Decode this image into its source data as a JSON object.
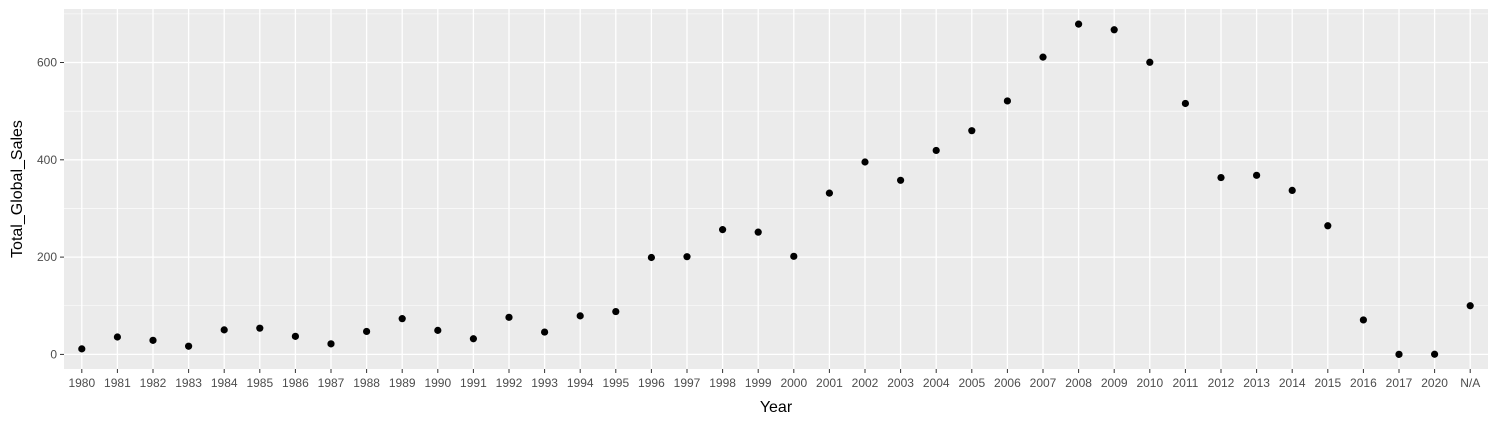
{
  "chart_data": {
    "type": "scatter",
    "title": "",
    "xlabel": "Year",
    "ylabel": "Total_Global_Sales",
    "x_scale": "categorical",
    "categories": [
      "1980",
      "1981",
      "1982",
      "1983",
      "1984",
      "1985",
      "1986",
      "1987",
      "1988",
      "1989",
      "1990",
      "1991",
      "1992",
      "1993",
      "1994",
      "1995",
      "1996",
      "1997",
      "1998",
      "1999",
      "2000",
      "2001",
      "2002",
      "2003",
      "2004",
      "2005",
      "2006",
      "2007",
      "2008",
      "2009",
      "2010",
      "2011",
      "2012",
      "2013",
      "2014",
      "2015",
      "2016",
      "2017",
      "2020",
      "N/A"
    ],
    "values": [
      11.4,
      35.8,
      28.9,
      16.8,
      50.4,
      53.9,
      37.1,
      21.7,
      47.2,
      73.5,
      49.4,
      32.2,
      76.2,
      45.9,
      79.2,
      88.1,
      199.2,
      200.9,
      256.5,
      251.3,
      201.6,
      331.5,
      395.5,
      357.9,
      419.3,
      459.9,
      521.0,
      611.1,
      678.9,
      667.3,
      600.5,
      515.8,
      363.5,
      368.1,
      337.1,
      264.4,
      70.9,
      0.1,
      0.3,
      100.0
    ],
    "y_ticks": [
      0,
      200,
      400,
      600
    ],
    "ylim": [
      -30,
      710
    ],
    "grid": true,
    "legend": "none",
    "colors": {
      "panel": "#ebebeb",
      "grid_major": "#ffffff",
      "point": "#000000",
      "tick_text": "#4d4d4d",
      "axis_title": "#000000"
    }
  }
}
